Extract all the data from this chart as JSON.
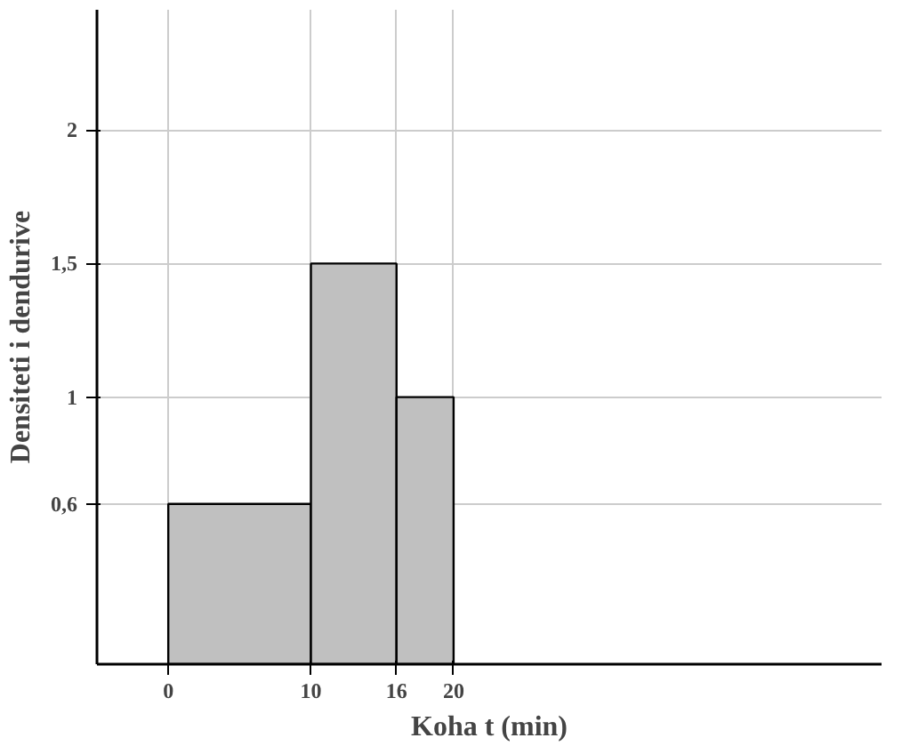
{
  "chart_data": {
    "type": "histogram",
    "xlabel": "Koha t (min)",
    "ylabel": "Densiteti i dendurive",
    "bins": [
      0,
      10,
      16,
      20
    ],
    "values": [
      0.6,
      1.5,
      1
    ],
    "color": "#c0c0c0",
    "xlim": [
      -5,
      50
    ],
    "ylim": [
      0,
      2.45
    ],
    "xticks": [
      0,
      10,
      16,
      20
    ],
    "yticks": [
      {
        "value": 0.6,
        "label": "0,6"
      },
      1,
      {
        "value": 1.5,
        "label": "1,5"
      },
      2
    ],
    "grid": true
  }
}
